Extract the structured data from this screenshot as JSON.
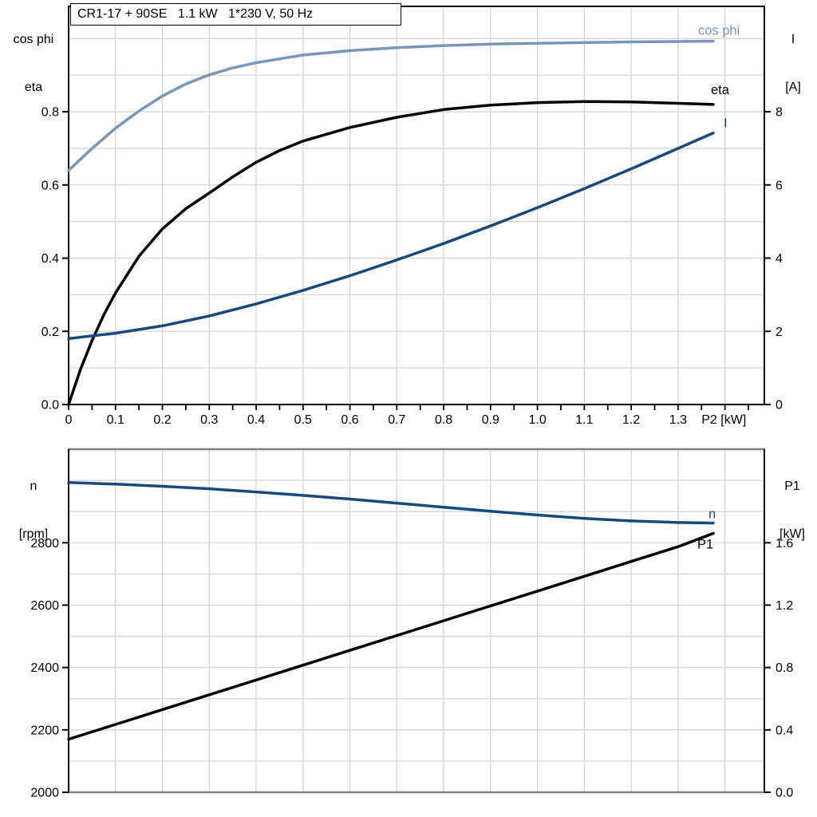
{
  "colors": {
    "background": "#ffffff",
    "grid": "#d4d4d4",
    "axis": "#000000",
    "frame_gray": "#808080",
    "light_blue": "#7696ba",
    "dark_blue": "#17497d",
    "black": "#000000"
  },
  "chart_data": [
    {
      "type": "line",
      "title": "CR1-17 + 90SE   1.1 kW   1*230 V, 50 Hz",
      "x_axis": {
        "label": "P2 [kW]",
        "range": [
          0,
          1.484
        ],
        "grid_step": 0.1,
        "minor_tick_step": 0.05,
        "tick_labels": [
          "0",
          "0.1",
          "0.2",
          "0.3",
          "0.4",
          "0.5",
          "0.6",
          "0.7",
          "0.8",
          "0.9",
          "1.0",
          "1.1",
          "1.2",
          "1.3"
        ]
      },
      "left_axis": {
        "label_lines": [
          "cos phi",
          "eta"
        ],
        "range": [
          0,
          1.088
        ],
        "grid_step": 0.1,
        "tick_values": [
          0,
          0.2,
          0.4,
          0.6,
          0.8
        ],
        "tick_labels": [
          "0.0",
          "0.2",
          "0.4",
          "0.6",
          "0.8"
        ]
      },
      "right_axis": {
        "label_lines": [
          "I",
          "[A]"
        ],
        "range": [
          0,
          10.88
        ],
        "tick_values": [
          0,
          2,
          4,
          6,
          8
        ],
        "tick_labels": [
          "0",
          "2",
          "4",
          "6",
          "8"
        ]
      },
      "series": [
        {
          "name": "cos phi",
          "axis": "left",
          "color": "#7696ba",
          "x": [
            0,
            0.05,
            0.1,
            0.15,
            0.2,
            0.25,
            0.3,
            0.35,
            0.4,
            0.5,
            0.6,
            0.7,
            0.8,
            0.9,
            1.0,
            1.1,
            1.2,
            1.3,
            1.375
          ],
          "y": [
            0.64,
            0.7,
            0.755,
            0.802,
            0.843,
            0.876,
            0.901,
            0.92,
            0.934,
            0.955,
            0.967,
            0.975,
            0.981,
            0.985,
            0.987,
            0.989,
            0.991,
            0.992,
            0.993
          ]
        },
        {
          "name": "eta",
          "axis": "left",
          "color": "#000000",
          "x": [
            0,
            0.025,
            0.05,
            0.075,
            0.1,
            0.15,
            0.2,
            0.25,
            0.3,
            0.35,
            0.4,
            0.45,
            0.5,
            0.6,
            0.7,
            0.8,
            0.9,
            1.0,
            1.1,
            1.2,
            1.3,
            1.375
          ],
          "y": [
            0,
            0.095,
            0.175,
            0.245,
            0.305,
            0.405,
            0.48,
            0.535,
            0.578,
            0.622,
            0.662,
            0.694,
            0.72,
            0.757,
            0.785,
            0.806,
            0.818,
            0.825,
            0.828,
            0.827,
            0.823,
            0.82
          ]
        },
        {
          "name": "I",
          "axis": "right",
          "color": "#17497d",
          "x": [
            0,
            0.1,
            0.2,
            0.3,
            0.4,
            0.5,
            0.6,
            0.7,
            0.8,
            0.9,
            1.0,
            1.1,
            1.2,
            1.3,
            1.375
          ],
          "y": [
            1.8,
            1.95,
            2.15,
            2.42,
            2.75,
            3.12,
            3.52,
            3.95,
            4.4,
            4.88,
            5.38,
            5.9,
            6.44,
            7.0,
            7.42
          ]
        }
      ]
    },
    {
      "type": "line",
      "x_axis": {
        "label": "",
        "range": [
          0,
          1.484
        ],
        "grid_step": 0.1,
        "tick_labels": []
      },
      "left_axis": {
        "label_lines": [
          "n",
          "[rpm]"
        ],
        "range": [
          2000,
          3100
        ],
        "grid_step": 100,
        "tick_values": [
          2000,
          2200,
          2400,
          2600,
          2800
        ],
        "tick_labels": [
          "2000",
          "2200",
          "2400",
          "2600",
          "2800"
        ]
      },
      "right_axis": {
        "label_lines": [
          "P1",
          "[kW]"
        ],
        "range": [
          0,
          2.2
        ],
        "tick_values": [
          0,
          0.4,
          0.8,
          1.2,
          1.6
        ],
        "tick_labels": [
          "0.0",
          "0.4",
          "0.8",
          "1.2",
          "1.6"
        ]
      },
      "series": [
        {
          "name": "n",
          "axis": "left",
          "color": "#17497d",
          "x": [
            0,
            0.1,
            0.2,
            0.3,
            0.4,
            0.5,
            0.6,
            0.7,
            0.8,
            0.9,
            1.0,
            1.1,
            1.2,
            1.3,
            1.375
          ],
          "y": [
            2993,
            2988,
            2981,
            2973,
            2963,
            2952,
            2940,
            2927,
            2914,
            2901,
            2889,
            2878,
            2870,
            2865,
            2863
          ]
        },
        {
          "name": "P1",
          "axis": "right",
          "color": "#000000",
          "x": [
            0,
            0.1,
            0.2,
            0.3,
            0.4,
            0.5,
            0.6,
            0.7,
            0.8,
            0.9,
            1.0,
            1.1,
            1.2,
            1.3,
            1.375
          ],
          "y": [
            0.34,
            0.435,
            0.53,
            0.625,
            0.72,
            0.815,
            0.91,
            1.005,
            1.1,
            1.195,
            1.29,
            1.385,
            1.48,
            1.575,
            1.66
          ]
        }
      ]
    }
  ]
}
